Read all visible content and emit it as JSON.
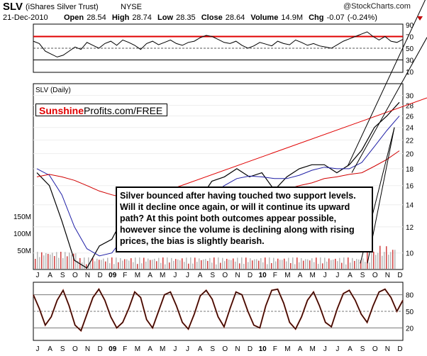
{
  "header": {
    "symbol": "SLV",
    "name": "(iShares Silver Trust)",
    "exchange": "NYSE",
    "date": "21-Dec-2010",
    "open_label": "Open",
    "open": "28.54",
    "high_label": "High",
    "high": "28.74",
    "low_label": "Low",
    "low": "28.35",
    "close_label": "Close",
    "close": "28.64",
    "volume_label": "Volume",
    "volume": "14.9M",
    "chg_label": "Chg",
    "chg": "-0.07 (-0.24%)",
    "watermark": "@StockCharts.com"
  },
  "colors": {
    "price": "#000000",
    "ma_short": "#1f1fa6",
    "ma_long": "#d00000",
    "trend": "#e00000",
    "rsi_ref": "#e00000",
    "volume": "#b8b8b8",
    "volume_down": "#d04040",
    "stoch_fill": "#9a2b1a"
  },
  "price_panel": {
    "label": "SLV (Daily)",
    "brand_red": "Sunshine",
    "brand_black": "Profits.com/FREE",
    "volume_ticks": [
      "150M",
      "100M",
      "50M"
    ]
  },
  "annotation": "Silver bounced after having touched two support levels. Will it decline once again, or will it continue its upward path? At this point both outcomes appear possible, however since the volume is declining along with rising prices, the bias is slightly bearish.",
  "x_axis_labels": [
    "J",
    "A",
    "S",
    "O",
    "N",
    "D",
    "09",
    "F",
    "M",
    "A",
    "M",
    "J",
    "J",
    "A",
    "S",
    "O",
    "N",
    "D",
    "10",
    "F",
    "M",
    "A",
    "M",
    "J",
    "J",
    "A",
    "S",
    "O",
    "N",
    "D"
  ],
  "chart_data": [
    {
      "type": "line",
      "panel": "RSI (14)",
      "yticks": [
        90,
        70,
        50,
        30,
        10
      ],
      "reference_lines": [
        70,
        50,
        30
      ],
      "values": [
        62,
        58,
        45,
        40,
        35,
        38,
        45,
        52,
        48,
        60,
        55,
        50,
        58,
        62,
        55,
        64,
        60,
        55,
        48,
        58,
        62,
        56,
        60,
        64,
        58,
        55,
        60,
        62,
        68,
        72,
        70,
        65,
        60,
        58,
        62,
        55,
        50,
        54,
        60,
        57,
        54,
        62,
        58,
        56,
        64,
        60,
        55,
        58,
        54,
        52,
        50,
        56,
        62,
        66,
        70,
        74,
        78,
        70,
        64,
        70,
        62,
        60,
        65
      ]
    },
    {
      "type": "line",
      "panel": "SLV (Daily)",
      "x": [
        "Jul 2008",
        "Aug 2008",
        "Sep 2008",
        "Oct 2008",
        "Nov 2008",
        "Dec 2008",
        "Jan 2009",
        "Feb 2009",
        "Mar 2009",
        "Apr 2009",
        "May 2009",
        "Jun 2009",
        "Jul 2009",
        "Aug 2009",
        "Sep 2009",
        "Oct 2009",
        "Nov 2009",
        "Dec 2009",
        "Jan 2010",
        "Feb 2010",
        "Mar 2010",
        "Apr 2010",
        "May 2010",
        "Jun 2010",
        "Jul 2010",
        "Aug 2010",
        "Sep 2010",
        "Oct 2010",
        "Nov 2010",
        "Dec 2010"
      ],
      "series": [
        {
          "name": "Price",
          "values": [
            17.5,
            16.0,
            12.5,
            9.5,
            9.0,
            10.5,
            11.0,
            13.0,
            13.0,
            12.5,
            14.5,
            14.5,
            13.5,
            14.5,
            16.5,
            17.0,
            18.0,
            17.0,
            17.5,
            15.5,
            17.0,
            18.0,
            18.5,
            18.5,
            17.5,
            18.5,
            20.5,
            24.0,
            26.0,
            28.6
          ]
        },
        {
          "name": "MA short",
          "values": [
            18.0,
            17.2,
            15.0,
            12.0,
            10.3,
            9.8,
            10.0,
            11.2,
            12.0,
            12.8,
            13.4,
            14.0,
            14.0,
            14.2,
            15.0,
            16.0,
            16.8,
            17.1,
            17.0,
            16.8,
            16.8,
            17.2,
            17.8,
            18.2,
            18.0,
            18.0,
            18.8,
            21.0,
            23.5,
            26.0
          ]
        },
        {
          "name": "MA long",
          "values": [
            17.0,
            17.3,
            17.0,
            16.6,
            16.0,
            15.4,
            15.0,
            14.7,
            14.4,
            13.9,
            13.3,
            12.9,
            12.6,
            12.6,
            12.9,
            13.3,
            14.0,
            14.5,
            15.0,
            15.3,
            15.6,
            16.0,
            16.3,
            16.8,
            17.0,
            17.3,
            17.5,
            18.3,
            19.2,
            20.4
          ]
        }
      ],
      "yticks": [
        30,
        28,
        26,
        24,
        22,
        20,
        18,
        16,
        14,
        12,
        10
      ],
      "scale": "log"
    },
    {
      "type": "area",
      "panel": "Stochastic",
      "yticks": [
        80,
        50,
        20
      ],
      "values": [
        80,
        55,
        25,
        40,
        70,
        88,
        60,
        25,
        15,
        45,
        75,
        90,
        70,
        40,
        20,
        30,
        55,
        85,
        75,
        35,
        20,
        50,
        80,
        85,
        60,
        30,
        18,
        45,
        78,
        88,
        72,
        40,
        22,
        55,
        85,
        80,
        50,
        25,
        20,
        60,
        88,
        90,
        65,
        30,
        18,
        40,
        70,
        85,
        60,
        30,
        22,
        55,
        82,
        88,
        70,
        45,
        30,
        60,
        85,
        90,
        75,
        50,
        70
      ]
    }
  ]
}
